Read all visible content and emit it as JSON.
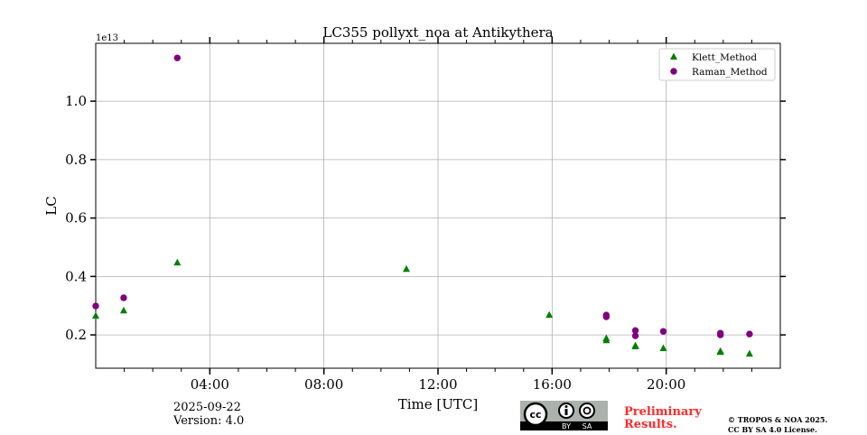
{
  "chart_data": {
    "type": "scatter",
    "title": "LC355 pollyxt_noa at Antikythera",
    "xlabel": "Time [UTC]",
    "ylabel": "LC",
    "y_scale_label": "1e13",
    "xlim_hours": [
      0,
      24
    ],
    "ylim": [
      0.086,
      1.198
    ],
    "x_ticks": [
      {
        "h": 4,
        "label": "04:00"
      },
      {
        "h": 8,
        "label": "08:00"
      },
      {
        "h": 12,
        "label": "12:00"
      },
      {
        "h": 16,
        "label": "16:00"
      },
      {
        "h": 20,
        "label": "20:00"
      }
    ],
    "y_ticks": [
      {
        "v": 0.2,
        "label": "0.2"
      },
      {
        "v": 0.4,
        "label": "0.4"
      },
      {
        "v": 0.6,
        "label": "0.6"
      },
      {
        "v": 0.8,
        "label": "0.8"
      },
      {
        "v": 1.0,
        "label": "1.0"
      }
    ],
    "grid": true,
    "legend_position": "top-right",
    "series": [
      {
        "name": "Klett_Method",
        "color": "#008000",
        "marker": "triangle",
        "points": [
          [
            0,
            0.265
          ],
          [
            0.98,
            0.283
          ],
          [
            2.86,
            0.447
          ],
          [
            10.89,
            0.425
          ],
          [
            15.9,
            0.268
          ],
          [
            17.9,
            0.188
          ],
          [
            17.9,
            0.181
          ],
          [
            18.92,
            0.163
          ],
          [
            18.92,
            0.16
          ],
          [
            19.9,
            0.154
          ],
          [
            21.9,
            0.144
          ],
          [
            21.9,
            0.141
          ],
          [
            22.92,
            0.135
          ]
        ]
      },
      {
        "name": "Raman_Method",
        "color": "#800080",
        "marker": "circle",
        "points": [
          [
            0,
            0.299
          ],
          [
            0.98,
            0.327
          ],
          [
            2.86,
            1.148
          ],
          [
            17.9,
            0.268
          ],
          [
            17.9,
            0.262
          ],
          [
            18.92,
            0.215
          ],
          [
            18.92,
            0.197
          ],
          [
            19.9,
            0.212
          ],
          [
            21.9,
            0.206
          ],
          [
            21.9,
            0.2
          ],
          [
            22.92,
            0.203
          ]
        ]
      }
    ]
  },
  "footer": {
    "date": "2025-09-22",
    "version": "Version: 4.0",
    "preliminary_line1": "Preliminary",
    "preliminary_line2": "Results.",
    "copyright_line1": "© TROPOS & NOA 2025.",
    "copyright_line2": "CC BY SA 4.0 License.",
    "license_badge": {
      "by": "BY",
      "sa": "SA",
      "cc": "cc"
    }
  }
}
